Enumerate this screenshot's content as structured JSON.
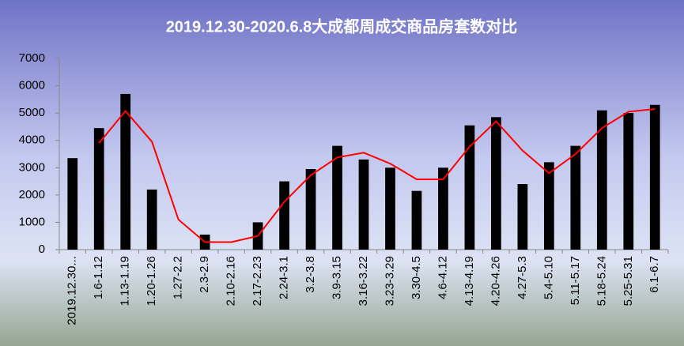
{
  "chart_data": {
    "type": "bar-line",
    "title": "2019.12.30-2020.6.8大成都周成交商品房套数对比",
    "categories": [
      "2019.12.30...",
      "1.6-1.12",
      "1.13-1.19",
      "1.20-1.26",
      "1.27-2.2",
      "2.3-2.9",
      "2.10-2.16",
      "2.17-2.23",
      "2.24-3.1",
      "3.2-3.8",
      "3.9-3.15",
      "3.16-3.22",
      "3.23-3.29",
      "3.30-4.5",
      "4.6-4.12",
      "4.13-4.19",
      "4.20-4.26",
      "4.27-5.3",
      "5.4-5.10",
      "5.11-5.17",
      "5.18-5.24",
      "5.25-5.31",
      "6.1-6.7"
    ],
    "series": [
      {
        "type": "bar",
        "color": "#000000",
        "values": [
          3350,
          4450,
          5700,
          2200,
          0,
          550,
          0,
          1000,
          2500,
          2950,
          3800,
          3300,
          3000,
          2150,
          3000,
          4550,
          4850,
          2400,
          3200,
          3800,
          5100,
          5000,
          5300
        ]
      },
      {
        "type": "line",
        "color": "#ff0000",
        "values": [
          null,
          3900,
          5075,
          3950,
          1100,
          275,
          275,
          500,
          1750,
          2725,
          3375,
          3550,
          3150,
          2575,
          2575,
          3775,
          4700,
          3625,
          2800,
          3500,
          4450,
          5050,
          5150
        ]
      }
    ],
    "ylim": [
      0,
      7000
    ],
    "yticks": [
      0,
      1000,
      2000,
      3000,
      4000,
      5000,
      6000,
      7000
    ]
  }
}
